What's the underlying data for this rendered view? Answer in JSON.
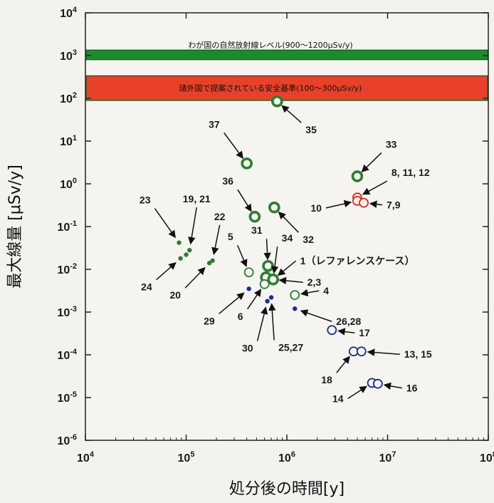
{
  "chart_data": {
    "type": "scatter",
    "xlabel": "処分後の時間[y]",
    "ylabel": "最大線量 [μSv/y]",
    "x_scale": "log",
    "y_scale": "log",
    "xlim": [
      10000,
      100000000
    ],
    "ylim": [
      1e-06,
      10000
    ],
    "x_ticks": [
      {
        "v": 10000,
        "b": "10",
        "e": "4"
      },
      {
        "v": 100000,
        "b": "10",
        "e": "5"
      },
      {
        "v": 1000000,
        "b": "10",
        "e": "6"
      },
      {
        "v": 10000000,
        "b": "10",
        "e": "7"
      },
      {
        "v": 100000000,
        "b": "10",
        "e": "8"
      }
    ],
    "y_ticks": [
      {
        "v": 10000,
        "b": "10",
        "e": "4"
      },
      {
        "v": 1000,
        "b": "10",
        "e": "3"
      },
      {
        "v": 100,
        "b": "10",
        "e": "2"
      },
      {
        "v": 10,
        "b": "10",
        "e": "1"
      },
      {
        "v": 1,
        "b": "10",
        "e": "0"
      },
      {
        "v": 0.1,
        "b": "10",
        "e": "-1"
      },
      {
        "v": 0.01,
        "b": "10",
        "e": "-2"
      },
      {
        "v": 0.001,
        "b": "10",
        "e": "-3"
      },
      {
        "v": 0.0001,
        "b": "10",
        "e": "-4"
      },
      {
        "v": 1e-05,
        "b": "10",
        "e": "-5"
      },
      {
        "v": 1e-06,
        "b": "10",
        "e": "-6"
      }
    ],
    "bands": [
      {
        "text": "わが国の自然放射線レベル(900～1200μSv/y)",
        "y_range": [
          900,
          1200
        ],
        "color": "#1e8a2e"
      },
      {
        "text": "諸外国で提案されている安全基準(100～300μSv/y)",
        "y_range": [
          100,
          300
        ],
        "color": "#e8412a"
      }
    ],
    "points": [
      {
        "x": 800000,
        "y": 85,
        "style": "ring-thick",
        "color": "#2e7d32"
      },
      {
        "x": 400000,
        "y": 3.0,
        "style": "ring-thick",
        "color": "#2e7d32"
      },
      {
        "x": 5000000,
        "y": 1.5,
        "style": "ring-thick",
        "color": "#2e7d32"
      },
      {
        "x": 480000,
        "y": 0.17,
        "style": "ring-thick",
        "color": "#2e7d32"
      },
      {
        "x": 750000,
        "y": 0.28,
        "style": "ring-thick",
        "color": "#2e7d32"
      },
      {
        "x": 5000000,
        "y": 0.48,
        "style": "ring",
        "color": "#d9281e"
      },
      {
        "x": 5000000,
        "y": 0.4,
        "style": "ring",
        "color": "#d9281e"
      },
      {
        "x": 5800000,
        "y": 0.36,
        "style": "ring",
        "color": "#d9281e"
      },
      {
        "x": 650000,
        "y": 0.012,
        "style": "ring-thick",
        "color": "#2e7d32"
      },
      {
        "x": 620000,
        "y": 0.0065,
        "style": "ring-thick",
        "color": "#2e7d32"
      },
      {
        "x": 730000,
        "y": 0.0058,
        "style": "ring-thick",
        "color": "#2e7d32"
      },
      {
        "x": 420000,
        "y": 0.0085,
        "style": "ring",
        "color": "#2e7d32"
      },
      {
        "x": 600000,
        "y": 0.0045,
        "style": "ring",
        "color": "#2e7d32"
      },
      {
        "x": 1200000,
        "y": 0.0025,
        "style": "ring",
        "color": "#2e7d32"
      },
      {
        "x": 85000,
        "y": 0.042,
        "style": "dot",
        "color": "#2e7d32"
      },
      {
        "x": 88000,
        "y": 0.018,
        "style": "dot",
        "color": "#2e7d32"
      },
      {
        "x": 100000,
        "y": 0.022,
        "style": "dot",
        "color": "#2e7d32"
      },
      {
        "x": 108000,
        "y": 0.028,
        "style": "dot",
        "color": "#2e7d32"
      },
      {
        "x": 170000,
        "y": 0.014,
        "style": "dot",
        "color": "#2e7d32"
      },
      {
        "x": 183000,
        "y": 0.016,
        "style": "dot",
        "color": "#2e7d32"
      },
      {
        "x": 420000,
        "y": 0.0035,
        "style": "dot",
        "color": "#1a2f8a"
      },
      {
        "x": 640000,
        "y": 0.0018,
        "style": "dot",
        "color": "#1a2f8a"
      },
      {
        "x": 700000,
        "y": 0.0022,
        "style": "dot",
        "color": "#1a2f8a"
      },
      {
        "x": 1200000,
        "y": 0.0012,
        "style": "dot",
        "color": "#1a2f8a"
      },
      {
        "x": 2800000,
        "y": 0.00038,
        "style": "ring",
        "color": "#1a2f8a"
      },
      {
        "x": 4600000,
        "y": 0.00012,
        "style": "ring",
        "color": "#1a2f8a"
      },
      {
        "x": 5500000,
        "y": 0.00012,
        "style": "ring",
        "color": "#1a2f8a"
      },
      {
        "x": 7000000,
        "y": 2.2e-05,
        "style": "ring",
        "color": "#1a2f8a"
      },
      {
        "x": 8000000,
        "y": 2.1e-05,
        "style": "ring",
        "color": "#1a2f8a"
      }
    ],
    "annotations": [
      {
        "text": "35",
        "at": [
          800000,
          85
        ]
      },
      {
        "text": "37",
        "at": [
          400000,
          3.0
        ]
      },
      {
        "text": "36",
        "at": [
          480000,
          0.17
        ]
      },
      {
        "text": "33",
        "at": [
          5000000,
          1.5
        ]
      },
      {
        "text": "8, 11, 12",
        "at": [
          5000000,
          0.48
        ]
      },
      {
        "text": "7,9",
        "at": [
          5800000,
          0.36
        ]
      },
      {
        "text": "10",
        "at": [
          5000000,
          0.4
        ]
      },
      {
        "text": "32",
        "at": [
          750000,
          0.28
        ]
      },
      {
        "text": "23",
        "at": [
          85000,
          0.042
        ]
      },
      {
        "text": "19, 21",
        "at": [
          108000,
          0.028
        ]
      },
      {
        "text": "22",
        "at": [
          183000,
          0.016
        ]
      },
      {
        "text": "5",
        "at": [
          420000,
          0.0085
        ]
      },
      {
        "text": "31",
        "at": [
          650000,
          0.012
        ]
      },
      {
        "text": "34",
        "at": [
          730000,
          0.0058
        ]
      },
      {
        "text": "1（レファレンスケース）",
        "at": [
          730000,
          0.0058
        ]
      },
      {
        "text": "2,3",
        "at": [
          730000,
          0.0058
        ]
      },
      {
        "text": "24",
        "at": [
          88000,
          0.018
        ]
      },
      {
        "text": "20",
        "at": [
          170000,
          0.014
        ]
      },
      {
        "text": "29",
        "at": [
          420000,
          0.0035
        ]
      },
      {
        "text": "6",
        "at": [
          600000,
          0.0045
        ]
      },
      {
        "text": "4",
        "at": [
          1200000,
          0.0025
        ]
      },
      {
        "text": "26,28",
        "at": [
          1200000,
          0.0012
        ]
      },
      {
        "text": "30",
        "at": [
          640000,
          0.0018
        ]
      },
      {
        "text": "25,27",
        "at": [
          700000,
          0.0022
        ]
      },
      {
        "text": "17",
        "at": [
          2800000,
          0.00038
        ]
      },
      {
        "text": "13, 15",
        "at": [
          5500000,
          0.00012
        ]
      },
      {
        "text": "18",
        "at": [
          4600000,
          0.00012
        ]
      },
      {
        "text": "14",
        "at": [
          7000000,
          2.2e-05
        ]
      },
      {
        "text": "16",
        "at": [
          8000000,
          2.1e-05
        ]
      }
    ]
  }
}
